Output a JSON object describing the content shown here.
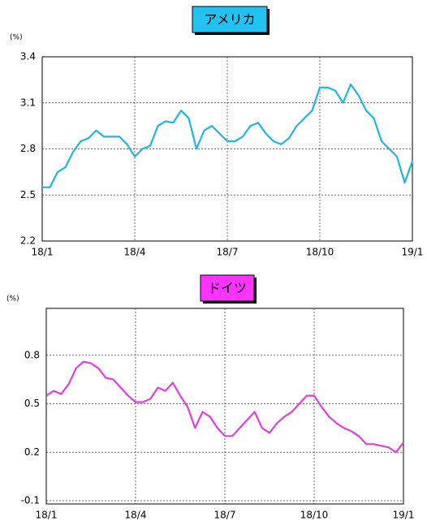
{
  "chart_data": [
    {
      "type": "line",
      "title": "アメリカ",
      "title_color": "#22c3f2",
      "y_label": "(%)",
      "color": "#1fb5e6",
      "grid": true,
      "x": [
        0,
        0.25,
        0.5,
        0.75,
        1,
        1.25,
        1.5,
        1.75,
        2,
        2.25,
        2.5,
        2.75,
        3,
        3.25,
        3.5,
        3.75,
        4,
        4.25,
        4.5,
        4.75,
        5,
        5.25,
        5.5,
        5.75,
        6,
        6.25,
        6.5,
        6.75,
        7,
        7.25,
        7.5,
        7.75,
        8,
        8.25,
        8.5,
        8.75,
        9,
        9.25,
        9.5,
        9.75,
        10,
        10.25,
        10.5,
        10.75,
        11,
        11.25,
        11.5,
        11.75,
        12
      ],
      "values": [
        2.55,
        2.55,
        2.65,
        2.68,
        2.78,
        2.85,
        2.87,
        2.92,
        2.88,
        2.88,
        2.88,
        2.83,
        2.75,
        2.8,
        2.82,
        2.95,
        2.98,
        2.97,
        3.05,
        3.0,
        2.8,
        2.92,
        2.95,
        2.9,
        2.85,
        2.85,
        2.88,
        2.95,
        2.97,
        2.9,
        2.85,
        2.83,
        2.87,
        2.95,
        3.0,
        3.05,
        3.2,
        3.2,
        3.18,
        3.1,
        3.22,
        3.15,
        3.05,
        3.0,
        2.85,
        2.8,
        2.75,
        2.58,
        2.72
      ],
      "xlim": [
        0,
        12
      ],
      "xticks": [
        {
          "value": 0,
          "label": "18/1"
        },
        {
          "value": 3,
          "label": "18/4"
        },
        {
          "value": 6,
          "label": "18/7"
        },
        {
          "value": 9,
          "label": "18/10"
        },
        {
          "value": 12,
          "label": "19/1"
        }
      ],
      "ylim": [
        2.2,
        3.4
      ],
      "yticks": [
        {
          "value": 2.2,
          "label": "2.2"
        },
        {
          "value": 2.5,
          "label": "2.5"
        },
        {
          "value": 2.8,
          "label": "2.8"
        },
        {
          "value": 3.1,
          "label": "3.1"
        },
        {
          "value": 3.4,
          "label": "3.4"
        }
      ]
    },
    {
      "type": "line",
      "title": "ドイツ",
      "title_color": "#ff33ff",
      "y_label": "(%)",
      "color": "#e03ee0",
      "grid": true,
      "x": [
        0,
        0.25,
        0.5,
        0.75,
        1,
        1.25,
        1.5,
        1.75,
        2,
        2.25,
        2.5,
        2.75,
        3,
        3.25,
        3.5,
        3.75,
        4,
        4.25,
        4.5,
        4.75,
        5,
        5.25,
        5.5,
        5.75,
        6,
        6.25,
        6.5,
        6.75,
        7,
        7.25,
        7.5,
        7.75,
        8,
        8.25,
        8.5,
        8.75,
        9,
        9.25,
        9.5,
        9.75,
        10,
        10.25,
        10.5,
        10.75,
        11,
        11.25,
        11.5,
        11.75,
        12
      ],
      "values": [
        0.55,
        0.58,
        0.56,
        0.62,
        0.72,
        0.76,
        0.75,
        0.72,
        0.66,
        0.65,
        0.6,
        0.55,
        0.51,
        0.51,
        0.53,
        0.6,
        0.58,
        0.63,
        0.55,
        0.48,
        0.35,
        0.45,
        0.42,
        0.35,
        0.3,
        0.3,
        0.35,
        0.4,
        0.45,
        0.35,
        0.32,
        0.38,
        0.42,
        0.45,
        0.5,
        0.55,
        0.55,
        0.48,
        0.42,
        0.38,
        0.35,
        0.33,
        0.3,
        0.25,
        0.25,
        0.24,
        0.23,
        0.2,
        0.26
      ],
      "xlim": [
        0,
        12
      ],
      "xticks": [
        {
          "value": 0,
          "label": "18/1"
        },
        {
          "value": 3,
          "label": "18/4"
        },
        {
          "value": 6,
          "label": "18/7"
        },
        {
          "value": 9,
          "label": "18/10"
        },
        {
          "value": 12,
          "label": "19/1"
        }
      ],
      "ylim": [
        -0.12,
        1.09
      ],
      "yticks": [
        -0.1,
        0.2,
        0.5,
        0.8
      ]
    }
  ]
}
